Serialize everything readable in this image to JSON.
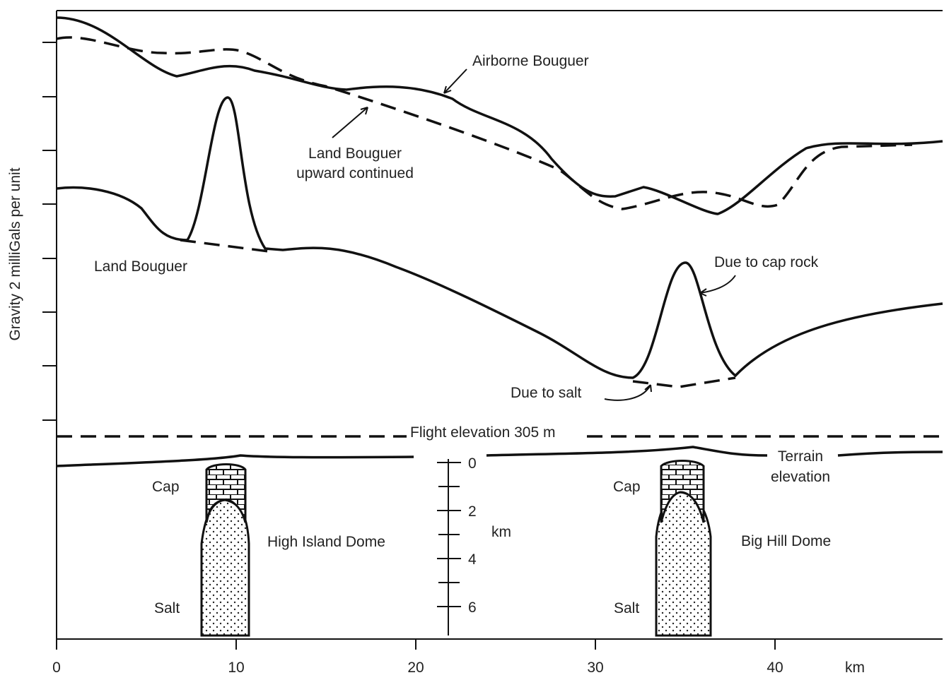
{
  "y_axis_label": "Gravity 2 milliGals per unit",
  "labels": {
    "airborne": "Airborne Bouguer",
    "upward_1": "Land Bouguer",
    "upward_2": "upward continued",
    "land": "Land Bouguer",
    "cap_rock": "Due to cap rock",
    "salt": "Due to salt",
    "flight": "Flight elevation 305 m",
    "terrain_1": "Terrain",
    "terrain_2": "elevation",
    "cap_left": "Cap",
    "cap_right": "Cap",
    "salt_left": "Salt",
    "salt_right": "Salt",
    "dome_left": "High Island Dome",
    "dome_right": "Big Hill Dome"
  },
  "x_axis": {
    "unit": "km",
    "ticks": [
      0,
      10,
      20,
      30,
      40
    ]
  },
  "depth_axis": {
    "unit": "km",
    "ticks": [
      0,
      2,
      4,
      6
    ]
  }
}
